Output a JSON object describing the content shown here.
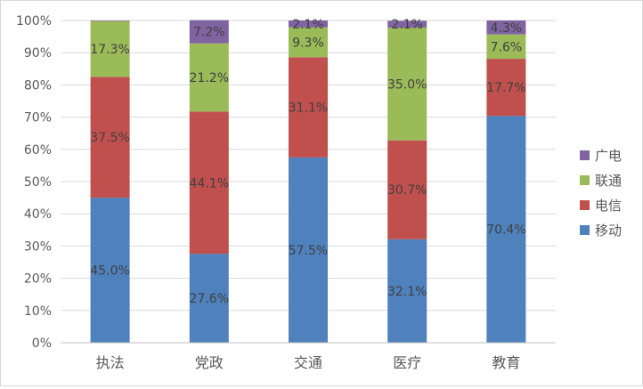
{
  "chart_data": {
    "type": "bar",
    "stacked": true,
    "normalized": true,
    "categories": [
      "执法",
      "党政",
      "交通",
      "医疗",
      "教育"
    ],
    "series": [
      {
        "name": "移动",
        "color": "#4f81bd",
        "values": [
          45.0,
          27.6,
          57.5,
          32.1,
          70.4
        ],
        "labels": [
          "45.0%",
          "27.6%",
          "57.5%",
          "32.1%",
          "70.4%"
        ]
      },
      {
        "name": "电信",
        "color": "#c0504d",
        "values": [
          37.5,
          44.1,
          31.1,
          30.7,
          17.7
        ],
        "labels": [
          "37.5%",
          "44.1%",
          "31.1%",
          "30.7%",
          "17.7%"
        ]
      },
      {
        "name": "联通",
        "color": "#9bbb59",
        "values": [
          17.3,
          21.2,
          9.3,
          35.0,
          7.6
        ],
        "labels": [
          "17.3%",
          "21.2%",
          "9.3%",
          "35.0%",
          "7.6%"
        ]
      },
      {
        "name": "广电",
        "color": "#8064a2",
        "values": [
          0.2,
          7.2,
          2.1,
          2.1,
          4.3
        ],
        "labels": [
          "",
          "7.2%",
          "2.1%",
          "2.1%",
          "4.3%"
        ]
      }
    ],
    "yticks": [
      "0%",
      "10%",
      "20%",
      "30%",
      "40%",
      "50%",
      "60%",
      "70%",
      "80%",
      "90%",
      "100%"
    ],
    "ylim": [
      0,
      100
    ],
    "grid": true,
    "legend_position": "right",
    "legend_order": [
      "广电",
      "联通",
      "电信",
      "移动"
    ],
    "gridline_color": "#d9d9d9",
    "axis_color": "#bfbfbf"
  }
}
